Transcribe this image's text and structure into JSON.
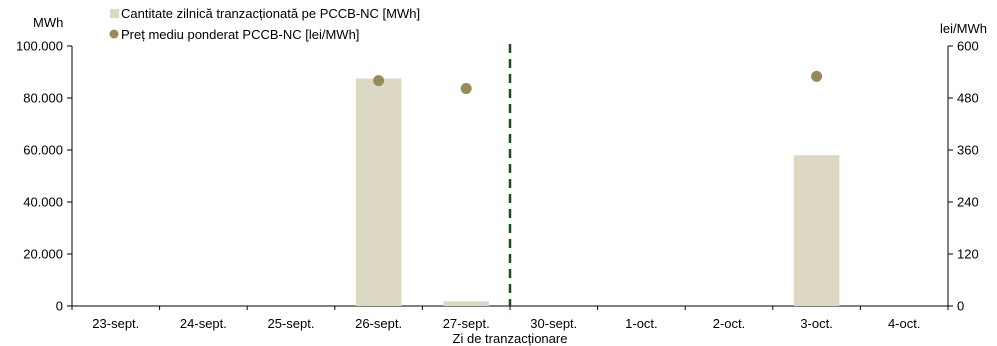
{
  "chart_data": {
    "type": "bar",
    "categories": [
      "23-sept.",
      "24-sept.",
      "25-sept.",
      "26-sept.",
      "27-sept.",
      "30-sept.",
      "1-oct.",
      "2-oct.",
      "3-oct.",
      "4-oct."
    ],
    "xlabel": "Zi de tranzacționare",
    "left_axis": {
      "unit": "MWh",
      "ylim": [
        0,
        100000
      ],
      "ticks": [
        "0",
        "20.000",
        "40.000",
        "60.000",
        "80.000",
        "100.000"
      ],
      "tick_values": [
        0,
        20000,
        40000,
        60000,
        80000,
        100000
      ]
    },
    "right_axis": {
      "unit": "lei/MWh",
      "ylim": [
        0,
        600
      ],
      "ticks": [
        "0",
        "120",
        "240",
        "360",
        "480",
        "600"
      ],
      "tick_values": [
        0,
        120,
        240,
        360,
        480,
        600
      ]
    },
    "series": [
      {
        "name": "Cantitate zilnică tranzacționată pe PCCB-NC [MWh]",
        "type": "bar",
        "axis": "left",
        "color": "#ddd8c4",
        "values": [
          0,
          0,
          0,
          87500,
          1800,
          0,
          0,
          0,
          58000,
          0
        ]
      },
      {
        "name": "Preț mediu ponderat PCCB-NC [lei/MWh]",
        "type": "scatter",
        "axis": "right",
        "color": "#968c5a",
        "values": [
          null,
          null,
          null,
          520,
          502,
          null,
          null,
          null,
          530,
          null
        ]
      }
    ],
    "separator_after_category": "27-sept.",
    "separator_color": "#1e4d1e",
    "legend_placement": "top-left",
    "grid": false
  }
}
